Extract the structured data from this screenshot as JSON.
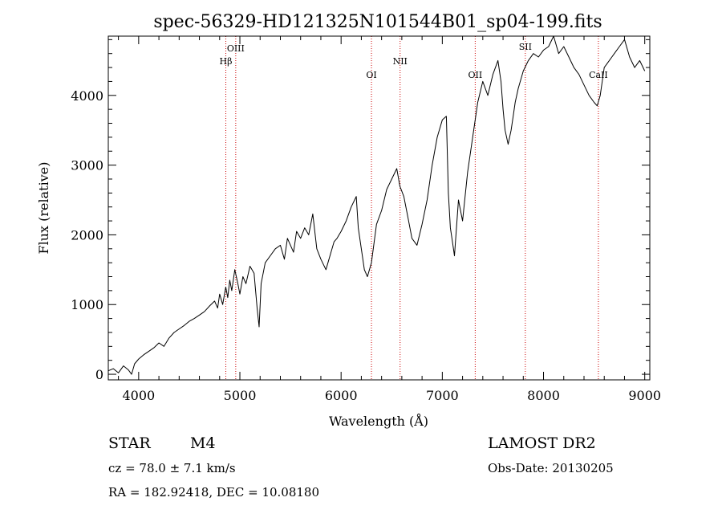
{
  "chart_data": {
    "type": "line",
    "title": "spec-56329-HD121325N101544B01_sp04-199.fits",
    "xlabel": "Wavelength (Å)",
    "ylabel": "Flux (relative)",
    "xlim": [
      3700,
      9050
    ],
    "ylim": [
      -80,
      4850
    ],
    "xticks": [
      4000,
      5000,
      6000,
      7000,
      8000,
      9000
    ],
    "yticks": [
      0,
      1000,
      2000,
      3000,
      4000
    ],
    "grid": false,
    "line_color": "#000000",
    "marker_color": "#cc0000",
    "lines": [
      {
        "name": "Hβ",
        "x": 4861
      },
      {
        "name": "OIII",
        "x": 4959
      },
      {
        "name": "OI",
        "x": 6300
      },
      {
        "name": "NII",
        "x": 6583
      },
      {
        "name": "OII",
        "x": 7325
      },
      {
        "name": "SII",
        "x": 7820
      },
      {
        "name": "CaII",
        "x": 8542
      }
    ],
    "series": [
      {
        "x": [
          3700,
          3750,
          3800,
          3850,
          3900,
          3930,
          3960,
          4000,
          4050,
          4100,
          4150,
          4200,
          4250,
          4300,
          4350,
          4400,
          4450,
          4500,
          4550,
          4600,
          4650,
          4700,
          4750,
          4780,
          4800,
          4830,
          4860,
          4880,
          4900,
          4920,
          4950,
          4980,
          5000,
          5030,
          5060,
          5100,
          5140,
          5170,
          5190,
          5210,
          5250,
          5300,
          5350,
          5400,
          5440,
          5470,
          5500,
          5530,
          5560,
          5600,
          5640,
          5680,
          5720,
          5760,
          5800,
          5850,
          5900,
          5930,
          5960,
          6000,
          6050,
          6100,
          6150,
          6170,
          6200,
          6230,
          6260,
          6300,
          6350,
          6400,
          6450,
          6500,
          6550,
          6580,
          6620,
          6660,
          6700,
          6750,
          6800,
          6850,
          6900,
          6950,
          7000,
          7040,
          7060,
          7080,
          7100,
          7120,
          7140,
          7160,
          7200,
          7250,
          7300,
          7350,
          7400,
          7450,
          7500,
          7550,
          7580,
          7600,
          7620,
          7650,
          7680,
          7700,
          7720,
          7750,
          7800,
          7850,
          7900,
          7950,
          8000,
          8050,
          8100,
          8150,
          8200,
          8250,
          8300,
          8350,
          8400,
          8450,
          8500,
          8530,
          8560,
          8600,
          8650,
          8700,
          8750,
          8800,
          8850,
          8900,
          8950,
          9000
        ],
        "y": [
          50,
          80,
          20,
          120,
          60,
          0,
          150,
          220,
          280,
          330,
          380,
          450,
          400,
          520,
          600,
          650,
          700,
          760,
          800,
          850,
          900,
          980,
          1050,
          950,
          1150,
          1000,
          1250,
          1100,
          1350,
          1200,
          1500,
          1300,
          1150,
          1400,
          1300,
          1550,
          1450,
          950,
          680,
          1300,
          1600,
          1700,
          1800,
          1850,
          1650,
          1950,
          1850,
          1750,
          2050,
          1950,
          2100,
          2000,
          2300,
          1800,
          1650,
          1500,
          1750,
          1900,
          1950,
          2050,
          2200,
          2400,
          2550,
          2100,
          1800,
          1500,
          1400,
          1600,
          2150,
          2350,
          2650,
          2800,
          2950,
          2700,
          2550,
          2250,
          1950,
          1850,
          2150,
          2500,
          3000,
          3400,
          3650,
          3700,
          2600,
          2100,
          1900,
          1700,
          2100,
          2500,
          2200,
          2900,
          3400,
          3900,
          4200,
          4000,
          4300,
          4500,
          4200,
          3800,
          3500,
          3300,
          3500,
          3700,
          3900,
          4100,
          4350,
          4500,
          4600,
          4550,
          4650,
          4700,
          4850,
          4600,
          4700,
          4550,
          4400,
          4300,
          4150,
          4000,
          3900,
          3850,
          4000,
          4400,
          4500,
          4600,
          4700,
          4800,
          4550,
          4400,
          4500,
          4350
        ]
      }
    ]
  },
  "info": {
    "object_class": "STAR",
    "subclass": "M4",
    "survey": "LAMOST DR2",
    "cz": "cz = 78.0 ± 7.1 km/s",
    "obs_date": "Obs-Date: 20130205",
    "coords": "RA = 182.92418, DEC =  10.08180"
  }
}
